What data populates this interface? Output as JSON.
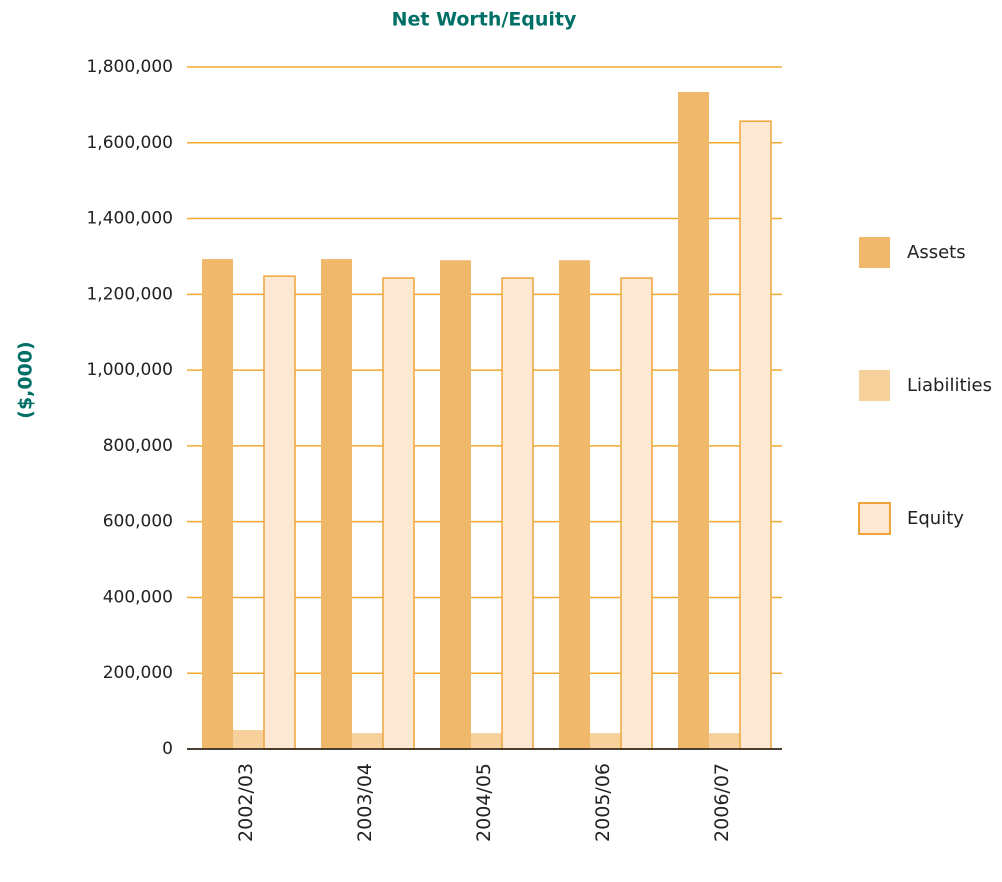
{
  "chart_data": {
    "type": "bar",
    "title": "Net Worth/Equity",
    "y_label": "($,000)",
    "categories": [
      "2002/03",
      "2003/04",
      "2004/05",
      "2005/06",
      "2006/07"
    ],
    "series": [
      {
        "name": "Assets",
        "color": "#f0b86a",
        "values": [
          1293000,
          1293000,
          1290000,
          1290000,
          1734000
        ]
      },
      {
        "name": "Liabilities",
        "color": "#f7d19c",
        "values": [
          50000,
          42000,
          42000,
          42000,
          42000
        ]
      },
      {
        "name": "Equity",
        "color": "#fde8d3",
        "stroke": "#eea43a",
        "values": [
          1248000,
          1243000,
          1243000,
          1243000,
          1657000
        ]
      }
    ],
    "ylim": [
      0,
      1800000
    ],
    "yticks": [
      0,
      {
        "value": 200000,
        "label": "200,000"
      },
      {
        "value": 400000,
        "label": "400,000"
      },
      {
        "value": 600000,
        "label": "600,000"
      },
      {
        "value": 800000,
        "label": "800,000"
      },
      {
        "value": 1000000,
        "label": "1,000,000"
      },
      {
        "value": 1200000,
        "label": "1,200,000"
      },
      {
        "value": 1400000,
        "label": "1,400,000"
      },
      {
        "value": 1600000,
        "label": "1,600,000"
      },
      {
        "value": 1800000,
        "label": "1,800,000"
      }
    ],
    "grid": true,
    "grid_color": "#f0a830",
    "legend": "right"
  }
}
